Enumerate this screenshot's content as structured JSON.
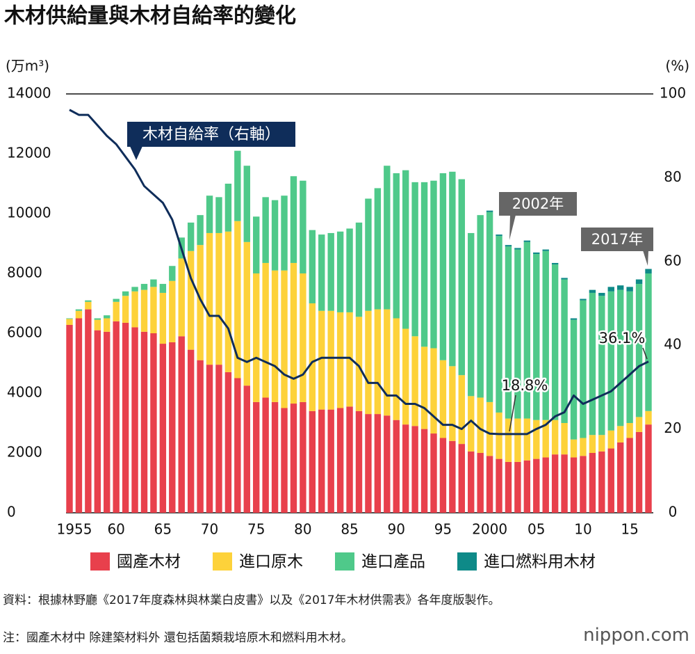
{
  "chart_data": {
    "type": "bar",
    "title": "木材供給量與木材自給率的變化",
    "y_label": "(万m³)",
    "y2_label": "(%)",
    "categories": [
      "1955",
      null,
      null,
      null,
      null,
      "60",
      null,
      null,
      null,
      null,
      "65",
      null,
      null,
      null,
      null,
      "70",
      null,
      null,
      null,
      null,
      "75",
      null,
      null,
      null,
      null,
      "80",
      null,
      null,
      null,
      null,
      "85",
      null,
      null,
      null,
      null,
      "90",
      null,
      null,
      null,
      null,
      "95",
      null,
      null,
      null,
      null,
      "2000",
      null,
      null,
      null,
      null,
      "05",
      null,
      null,
      null,
      null,
      "10",
      null,
      null,
      null,
      null,
      "15",
      null,
      null
    ],
    "stacked": true,
    "series": [
      {
        "name": "國產木材",
        "color": "#e8404c",
        "values": [
          6280,
          6500,
          6800,
          6100,
          6050,
          6400,
          6350,
          6200,
          6050,
          6000,
          5650,
          5700,
          5900,
          5450,
          5100,
          4950,
          4950,
          4700,
          4500,
          4250,
          3700,
          3850,
          3700,
          3500,
          3650,
          3700,
          3400,
          3450,
          3450,
          3500,
          3550,
          3400,
          3300,
          3300,
          3250,
          3100,
          2950,
          2900,
          2800,
          2650,
          2500,
          2400,
          2300,
          2050,
          2000,
          1900,
          1800,
          1700,
          1700,
          1750,
          1800,
          1850,
          1950,
          1950,
          1850,
          1900,
          2000,
          2050,
          2150,
          2350,
          2500,
          2700,
          2950
        ]
      },
      {
        "name": "進口原木",
        "color": "#fdd23a",
        "values": [
          200,
          250,
          250,
          350,
          450,
          650,
          900,
          1200,
          1400,
          1550,
          1700,
          2050,
          2600,
          3300,
          3850,
          4400,
          4400,
          4700,
          5250,
          4800,
          4300,
          4500,
          4400,
          4600,
          4700,
          4300,
          3600,
          3300,
          3300,
          3200,
          3150,
          3150,
          3450,
          3500,
          3550,
          3400,
          3200,
          3000,
          2750,
          2850,
          2600,
          2500,
          2300,
          1850,
          1850,
          1800,
          1550,
          1450,
          1450,
          1400,
          1300,
          1250,
          1150,
          1050,
          600,
          600,
          600,
          550,
          600,
          550,
          500,
          500,
          450
        ]
      },
      {
        "name": "進口產品",
        "color": "#4fc98a",
        "values": [
          20,
          50,
          50,
          50,
          100,
          100,
          150,
          150,
          200,
          250,
          300,
          500,
          700,
          950,
          1000,
          1250,
          1200,
          1600,
          2350,
          2550,
          1900,
          2200,
          2350,
          2500,
          2900,
          3100,
          2450,
          2550,
          2600,
          2700,
          2800,
          3150,
          3750,
          4050,
          4800,
          4850,
          5300,
          5150,
          5500,
          5600,
          6250,
          6500,
          6550,
          5450,
          6100,
          6350,
          5900,
          5750,
          5650,
          5900,
          5550,
          5650,
          5200,
          4800,
          4000,
          4600,
          4750,
          4650,
          4650,
          4550,
          4400,
          4450,
          4600
        ]
      },
      {
        "name": "進口燃料用木材",
        "color": "#0e8a88",
        "values": [
          0,
          0,
          0,
          0,
          0,
          0,
          0,
          0,
          0,
          0,
          0,
          0,
          0,
          0,
          0,
          0,
          0,
          0,
          0,
          0,
          0,
          0,
          0,
          0,
          0,
          0,
          0,
          0,
          0,
          0,
          0,
          0,
          0,
          0,
          0,
          0,
          0,
          0,
          0,
          0,
          0,
          0,
          0,
          0,
          0,
          50,
          50,
          50,
          50,
          50,
          50,
          50,
          50,
          50,
          50,
          50,
          100,
          100,
          150,
          150,
          150,
          150,
          150
        ]
      },
      {
        "name": "木材自給率（右軸）",
        "type": "line",
        "axis": "y2",
        "color": "#0f2d5a",
        "values": [
          96.2,
          95,
          95,
          92.5,
          90,
          88,
          85,
          82,
          78,
          76,
          74,
          70,
          63,
          56,
          51,
          47,
          47,
          44,
          37,
          36,
          37,
          36,
          35,
          33,
          32,
          33,
          36,
          37,
          37,
          37,
          37,
          35,
          31,
          31,
          28,
          28,
          26,
          26,
          25,
          23,
          21,
          21,
          20,
          22,
          20,
          18.9,
          18.8,
          18.8,
          18.8,
          18.8,
          20,
          21,
          23,
          24,
          28,
          26,
          27,
          28,
          29,
          31,
          33,
          35,
          36.1
        ],
        "value_labels": [
          null,
          null,
          null,
          null,
          null,
          null,
          null,
          null,
          null,
          null,
          null,
          null,
          null,
          null,
          null,
          null,
          null,
          null,
          null,
          null,
          null,
          null,
          null,
          null,
          null,
          null,
          null,
          null,
          null,
          null,
          null,
          null,
          null,
          null,
          null,
          null,
          null,
          null,
          null,
          null,
          null,
          null,
          null,
          null,
          null,
          null,
          null,
          "18.8%",
          null,
          null,
          null,
          null,
          null,
          null,
          null,
          null,
          null,
          null,
          null,
          null,
          null,
          null,
          "36.1%"
        ]
      }
    ],
    "annotations": [
      "2002年",
      "2017年"
    ],
    "ylim": [
      0,
      14000
    ],
    "yticks": [
      0,
      2000,
      4000,
      6000,
      8000,
      10000,
      12000,
      14000
    ],
    "y2lim": [
      0,
      100
    ],
    "y2ticks": [
      0,
      20,
      40,
      60,
      80,
      100
    ],
    "grid": false
  },
  "source": "資料：根據林野廳《2017年度森林與林業白皮書》以及《2017年木材供需表》各年度版製作。",
  "note": "注：國產木材中 除建築材料外 還包括菌類栽培原木和燃料用木材。",
  "brand": "nippon.com"
}
